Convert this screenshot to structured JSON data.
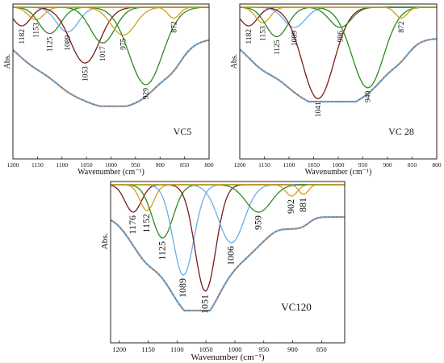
{
  "chart_data": [
    {
      "type": "line",
      "panel_label": "VC5",
      "ylabel": "Abs.",
      "xlabel": "Wavenumber (cm⁻¹)",
      "xlim": [
        1200,
        800
      ],
      "x_reversed": true,
      "xticks": [
        1200,
        1150,
        1100,
        1050,
        1000,
        950,
        900,
        850,
        800
      ],
      "peaks": [
        {
          "label": "1182",
          "center": 1182,
          "width": 18,
          "depth": 0.12,
          "color": "#7a1b1b"
        },
        {
          "label": "1153",
          "center": 1153,
          "width": 16,
          "depth": 0.08,
          "color": "#d4a017"
        },
        {
          "label": "1125",
          "center": 1125,
          "width": 22,
          "depth": 0.17,
          "color": "#2e8b1f"
        },
        {
          "label": "1089",
          "center": 1089,
          "width": 22,
          "depth": 0.16,
          "color": "#6aaee8"
        },
        {
          "label": "1053",
          "center": 1053,
          "width": 30,
          "depth": 0.36,
          "color": "#7a1b1b"
        },
        {
          "label": "1017",
          "center": 1017,
          "width": 25,
          "depth": 0.23,
          "color": "#2e8b1f"
        },
        {
          "label": "975",
          "center": 975,
          "width": 25,
          "depth": 0.18,
          "color": "#d4a017"
        },
        {
          "label": "929",
          "center": 929,
          "width": 34,
          "depth": 0.5,
          "color": "#2e8b1f"
        },
        {
          "label": "872",
          "center": 872,
          "width": 12,
          "depth": 0.07,
          "color": "#d4a017"
        }
      ]
    },
    {
      "type": "line",
      "panel_label": "VC 28",
      "ylabel": "Abs.",
      "xlabel": "Wavenumber (cm⁻¹)",
      "xlim": [
        1200,
        800
      ],
      "x_reversed": true,
      "xticks": [
        1200,
        1150,
        1100,
        1050,
        1000,
        950,
        900,
        850,
        800
      ],
      "peaks": [
        {
          "label": "1182",
          "center": 1182,
          "width": 18,
          "depth": 0.12,
          "color": "#7a1b1b"
        },
        {
          "label": "1153",
          "center": 1153,
          "width": 15,
          "depth": 0.1,
          "color": "#d4a017"
        },
        {
          "label": "1125",
          "center": 1125,
          "width": 22,
          "depth": 0.19,
          "color": "#2e8b1f"
        },
        {
          "label": "1089",
          "center": 1089,
          "width": 22,
          "depth": 0.13,
          "color": "#6aaee8"
        },
        {
          "label": "1041",
          "center": 1041,
          "width": 32,
          "depth": 0.59,
          "color": "#7a1b1b"
        },
        {
          "label": "996",
          "center": 996,
          "width": 22,
          "depth": 0.13,
          "color": "#2e8b1f"
        },
        {
          "label": "940",
          "center": 940,
          "width": 32,
          "depth": 0.52,
          "color": "#2e8b1f"
        },
        {
          "label": "872",
          "center": 872,
          "width": 12,
          "depth": 0.07,
          "color": "#d4a017"
        }
      ]
    },
    {
      "type": "line",
      "panel_label": "VC120",
      "ylabel": "Abs.",
      "xlabel": "Wavenumber (cm⁻¹)",
      "xlim": [
        1215,
        810
      ],
      "x_reversed": true,
      "xticks": [
        1200,
        1150,
        1100,
        1050,
        1000,
        950,
        900,
        850
      ],
      "peaks": [
        {
          "label": "1176",
          "center": 1176,
          "width": 14,
          "depth": 0.17,
          "color": "#7a1b1b"
        },
        {
          "label": "1152",
          "center": 1152,
          "width": 12,
          "depth": 0.16,
          "color": "#d4a017"
        },
        {
          "label": "1125",
          "center": 1125,
          "width": 18,
          "depth": 0.33,
          "color": "#2e8b1f"
        },
        {
          "label": "1089",
          "center": 1089,
          "width": 18,
          "depth": 0.56,
          "color": "#6aaee8"
        },
        {
          "label": "1051",
          "center": 1051,
          "width": 18,
          "depth": 0.66,
          "color": "#7a1b1b"
        },
        {
          "label": "1006",
          "center": 1006,
          "width": 22,
          "depth": 0.36,
          "color": "#6aaee8"
        },
        {
          "label": "959",
          "center": 959,
          "width": 22,
          "depth": 0.17,
          "color": "#2e8b1f"
        },
        {
          "label": "902",
          "center": 902,
          "width": 10,
          "depth": 0.07,
          "color": "#d4a017"
        },
        {
          "label": "881",
          "center": 881,
          "width": 8,
          "depth": 0.06,
          "color": "#d4a017"
        }
      ]
    }
  ],
  "style": {
    "envelope_color": "#808080",
    "fit_color": "#e07b39",
    "experimental_color": "#6aaee8"
  }
}
